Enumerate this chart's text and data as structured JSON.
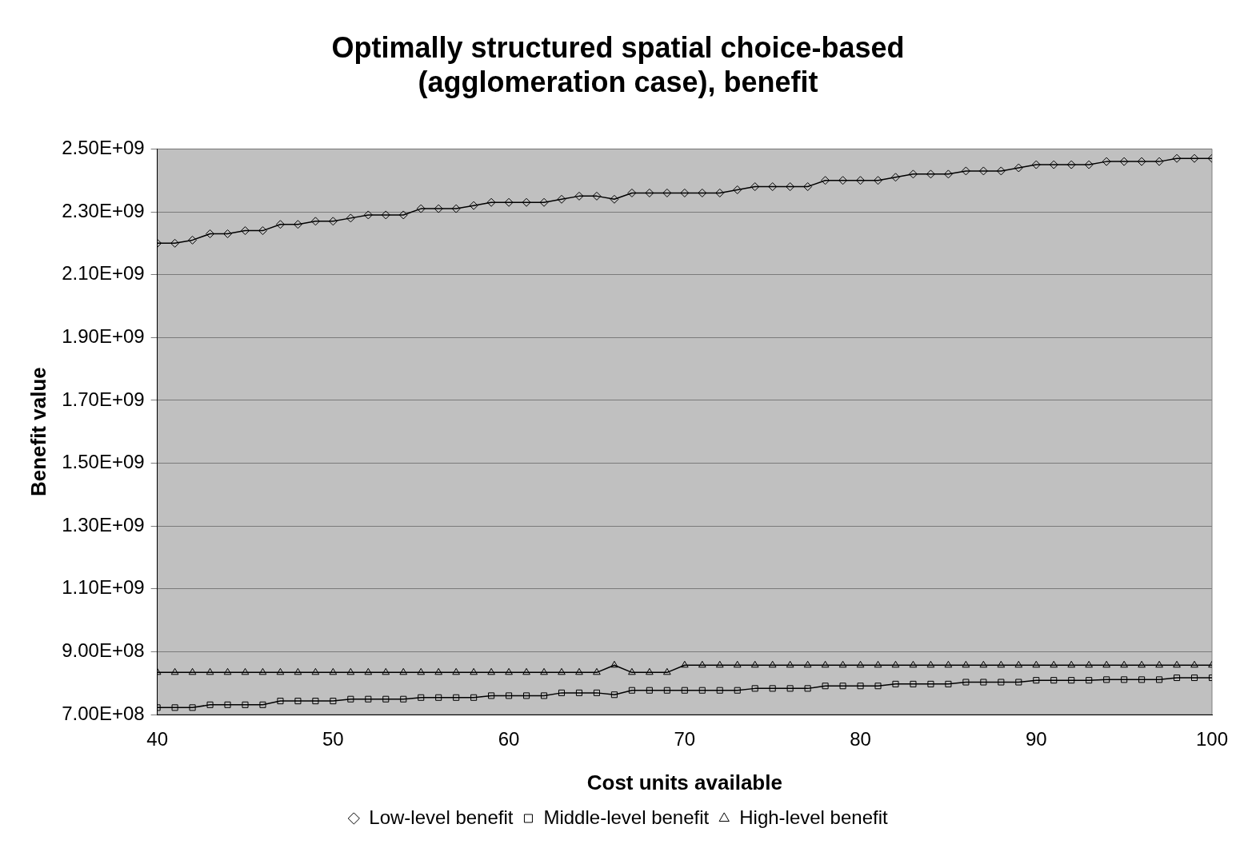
{
  "chart_data": {
    "type": "line",
    "title": "Optimally structured spatial choice-based\n(agglomeration case), benefit",
    "xlabel": "Cost units available",
    "ylabel": "Benefit value",
    "x": [
      40,
      41,
      42,
      43,
      44,
      45,
      46,
      47,
      48,
      49,
      50,
      51,
      52,
      53,
      54,
      55,
      56,
      57,
      58,
      59,
      60,
      61,
      62,
      63,
      64,
      65,
      66,
      67,
      68,
      69,
      70,
      71,
      72,
      73,
      74,
      75,
      76,
      77,
      78,
      79,
      80,
      81,
      82,
      83,
      84,
      85,
      86,
      87,
      88,
      89,
      90,
      91,
      92,
      93,
      94,
      95,
      96,
      97,
      98,
      99,
      100
    ],
    "series": [
      {
        "name": "Low-level benefit",
        "color": "#000000",
        "marker": "diamond",
        "values": [
          2200000000,
          2200000000,
          2210000000,
          2230000000,
          2230000000,
          2240000000,
          2240000000,
          2260000000,
          2260000000,
          2270000000,
          2270000000,
          2280000000,
          2290000000,
          2290000000,
          2290000000,
          2310000000,
          2310000000,
          2310000000,
          2320000000,
          2330000000,
          2330000000,
          2330000000,
          2330000000,
          2340000000,
          2350000000,
          2350000000,
          2340000000,
          2360000000,
          2360000000,
          2360000000,
          2360000000,
          2360000000,
          2360000000,
          2370000000,
          2380000000,
          2380000000,
          2380000000,
          2380000000,
          2400000000,
          2400000000,
          2400000000,
          2400000000,
          2410000000,
          2420000000,
          2420000000,
          2420000000,
          2430000000,
          2430000000,
          2430000000,
          2440000000,
          2450000000,
          2450000000,
          2450000000,
          2450000000,
          2460000000,
          2460000000,
          2460000000,
          2460000000,
          2470000000,
          2470000000,
          2470000000
        ]
      },
      {
        "name": "Middle-level benefit",
        "color": "#000000",
        "marker": "square",
        "values": [
          722000000,
          722000000,
          722000000,
          731000000,
          731000000,
          731000000,
          731000000,
          743000000,
          743000000,
          743000000,
          743000000,
          749000000,
          749000000,
          749000000,
          749000000,
          754000000,
          754000000,
          754000000,
          754000000,
          760000000,
          760000000,
          760000000,
          760000000,
          769000000,
          769000000,
          769000000,
          763000000,
          777000000,
          777000000,
          777000000,
          777000000,
          777000000,
          777000000,
          777000000,
          783000000,
          783000000,
          783000000,
          783000000,
          791000000,
          791000000,
          791000000,
          791000000,
          797000000,
          797000000,
          797000000,
          797000000,
          803000000,
          803000000,
          803000000,
          803000000,
          809000000,
          809000000,
          809000000,
          809000000,
          811000000,
          811000000,
          811000000,
          811000000,
          817000000,
          817000000,
          817000000
        ]
      },
      {
        "name": "High-level benefit",
        "color": "#000000",
        "marker": "triangle",
        "values": [
          834000000,
          834000000,
          834000000,
          834000000,
          834000000,
          834000000,
          834000000,
          834000000,
          834000000,
          834000000,
          834000000,
          834000000,
          834000000,
          834000000,
          834000000,
          834000000,
          834000000,
          834000000,
          834000000,
          834000000,
          834000000,
          834000000,
          834000000,
          834000000,
          834000000,
          834000000,
          857000000,
          834000000,
          834000000,
          834000000,
          857000000,
          857000000,
          857000000,
          857000000,
          857000000,
          857000000,
          857000000,
          857000000,
          857000000,
          857000000,
          857000000,
          857000000,
          857000000,
          857000000,
          857000000,
          857000000,
          857000000,
          857000000,
          857000000,
          857000000,
          857000000,
          857000000,
          857000000,
          857000000,
          857000000,
          857000000,
          857000000,
          857000000,
          857000000,
          857000000,
          857000000
        ]
      }
    ],
    "xlim": [
      40,
      100
    ],
    "xticks": [
      40,
      50,
      60,
      70,
      80,
      90,
      100
    ],
    "ylim": [
      700000000,
      2500000000
    ],
    "yticks": [
      {
        "value": 700000000,
        "label": "7.00E+08"
      },
      {
        "value": 900000000,
        "label": "9.00E+08"
      },
      {
        "value": 1100000000,
        "label": "1.10E+09"
      },
      {
        "value": 1300000000,
        "label": "1.30E+09"
      },
      {
        "value": 1500000000,
        "label": "1.50E+09"
      },
      {
        "value": 1700000000,
        "label": "1.70E+09"
      },
      {
        "value": 1900000000,
        "label": "1.90E+09"
      },
      {
        "value": 2100000000,
        "label": "2.10E+09"
      },
      {
        "value": 2300000000,
        "label": "2.30E+09"
      },
      {
        "value": 2500000000,
        "label": "2.50E+09"
      }
    ],
    "grid": "y",
    "legend": "bottom",
    "line_style": "solid"
  }
}
